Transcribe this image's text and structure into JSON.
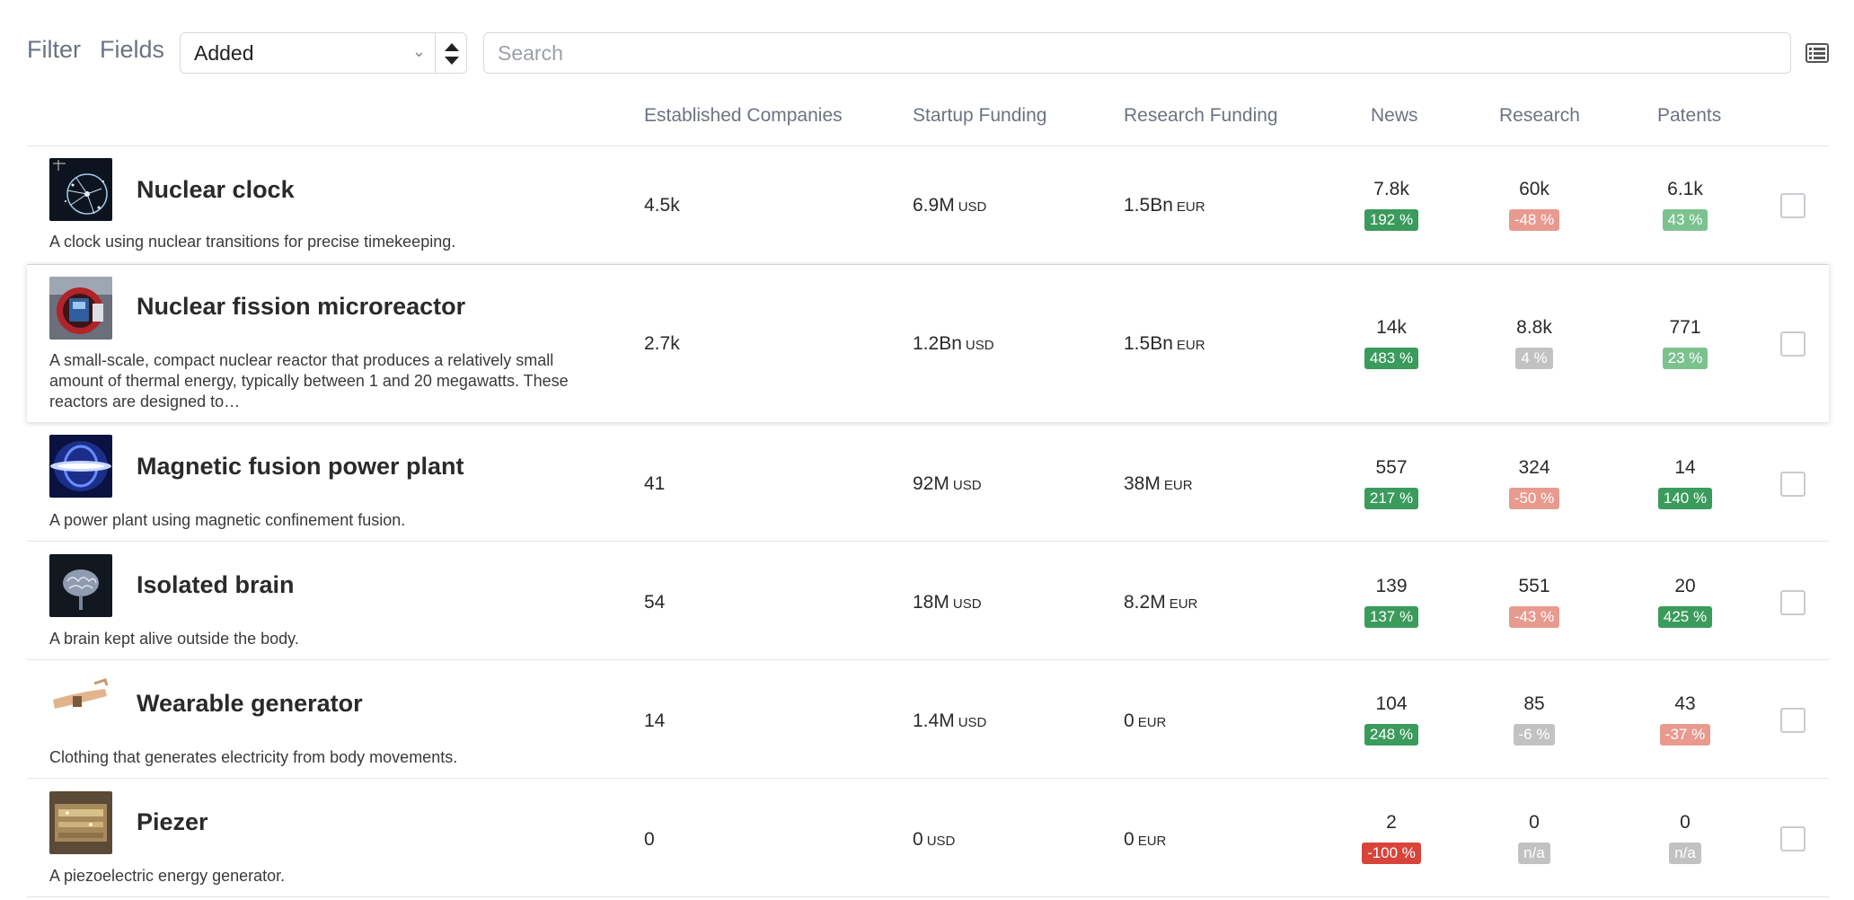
{
  "toolbar": {
    "filter_label": "Filter",
    "fields_label": "Fields",
    "sort_select": {
      "value": "Added"
    },
    "search": {
      "placeholder": "Search"
    }
  },
  "columns": [
    "Established Companies",
    "Startup Funding",
    "Research Funding",
    "News",
    "Research",
    "Patents"
  ],
  "badge_colors": {
    "strong_green": "#3a9b5c",
    "light_green": "#7cc28f",
    "light_red": "#e89a8f",
    "strong_red": "#d9443a",
    "gray": "#c2c2c2"
  },
  "rows": [
    {
      "title": "Nuclear clock",
      "description": "A clock using nuclear transitions for precise timekeeping.",
      "established": "4.5k",
      "startup_funding": "6.9M",
      "startup_unit": "USD",
      "research_funding": "1.5Bn",
      "research_unit": "EUR",
      "news": "7.8k",
      "news_change": "192 %",
      "news_tone": "strong_green",
      "research": "60k",
      "research_change": "-48 %",
      "research_tone": "light_red",
      "patents": "6.1k",
      "patents_change": "43 %",
      "patents_tone": "light_green",
      "thumb_icon": "nuclear-clock-image"
    },
    {
      "title": "Nuclear fission microreactor",
      "description": "A small-scale, compact nuclear reactor that produces a relatively small amount of thermal energy, typically between 1 and 20 megawatts. These reactors are designed to…",
      "established": "2.7k",
      "startup_funding": "1.2Bn",
      "startup_unit": "USD",
      "research_funding": "1.5Bn",
      "research_unit": "EUR",
      "news": "14k",
      "news_change": "483 %",
      "news_tone": "strong_green",
      "research": "8.8k",
      "research_change": "4 %",
      "research_tone": "gray",
      "patents": "771",
      "patents_change": "23 %",
      "patents_tone": "light_green",
      "thumb_icon": "microreactor-image"
    },
    {
      "title": "Magnetic fusion power plant",
      "description": "A power plant using magnetic confinement fusion.",
      "established": "41",
      "startup_funding": "92M",
      "startup_unit": "USD",
      "research_funding": "38M",
      "research_unit": "EUR",
      "news": "557",
      "news_change": "217 %",
      "news_tone": "strong_green",
      "research": "324",
      "research_change": "-50 %",
      "research_tone": "light_red",
      "patents": "14",
      "patents_change": "140 %",
      "patents_tone": "strong_green",
      "thumb_icon": "fusion-plasma-image"
    },
    {
      "title": "Isolated brain",
      "description": "A brain kept alive outside the body.",
      "established": "54",
      "startup_funding": "18M",
      "startup_unit": "USD",
      "research_funding": "8.2M",
      "research_unit": "EUR",
      "news": "139",
      "news_change": "137 %",
      "news_tone": "strong_green",
      "research": "551",
      "research_change": "-43 %",
      "research_tone": "light_red",
      "patents": "20",
      "patents_change": "425 %",
      "patents_tone": "strong_green",
      "thumb_icon": "brain-image"
    },
    {
      "title": "Wearable generator",
      "description": "Clothing that generates electricity from body movements.",
      "established": "14",
      "startup_funding": "1.4M",
      "startup_unit": "USD",
      "research_funding": "0",
      "research_unit": "EUR",
      "news": "104",
      "news_change": "248 %",
      "news_tone": "strong_green",
      "research": "85",
      "research_change": "-6 %",
      "research_tone": "gray",
      "patents": "43",
      "patents_change": "-37 %",
      "patents_tone": "light_red",
      "thumb_icon": "wearable-arm-image"
    },
    {
      "title": "Piezer",
      "description": "A piezoelectric energy generator.",
      "established": "0",
      "startup_funding": "0",
      "startup_unit": "USD",
      "research_funding": "0",
      "research_unit": "EUR",
      "news": "2",
      "news_change": "-100 %",
      "news_tone": "strong_red",
      "research": "0",
      "research_change": "n/a",
      "research_tone": "gray",
      "patents": "0",
      "patents_change": "n/a",
      "patents_tone": "gray",
      "thumb_icon": "piezo-device-image"
    }
  ]
}
